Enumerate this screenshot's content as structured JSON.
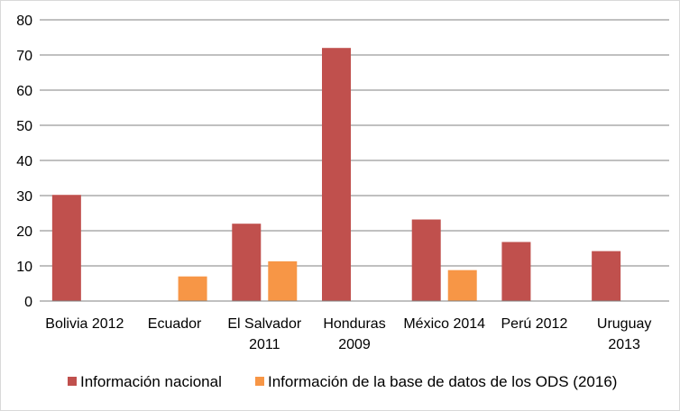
{
  "chart_data": {
    "type": "bar",
    "categories": [
      [
        "Bolivia 2012"
      ],
      [
        "Ecuador"
      ],
      [
        "El Salvador",
        "2011"
      ],
      [
        "Honduras",
        "2009"
      ],
      [
        "México 2014"
      ],
      [
        "Perú 2012"
      ],
      [
        "Uruguay",
        "2013"
      ]
    ],
    "series": [
      {
        "name": "Información nacional",
        "color": "#c0504d",
        "values": [
          30.2,
          null,
          22,
          72,
          23.2,
          16.8,
          14.2
        ]
      },
      {
        "name": "Información de la base de datos de los ODS (2016)",
        "color": "#f79646",
        "values": [
          null,
          7,
          11.3,
          null,
          8.8,
          null,
          null
        ]
      }
    ],
    "ylim": [
      0,
      80
    ],
    "yticks": [
      0,
      10,
      20,
      30,
      40,
      50,
      60,
      70,
      80
    ],
    "grid": true,
    "legend_position": "bottom"
  }
}
